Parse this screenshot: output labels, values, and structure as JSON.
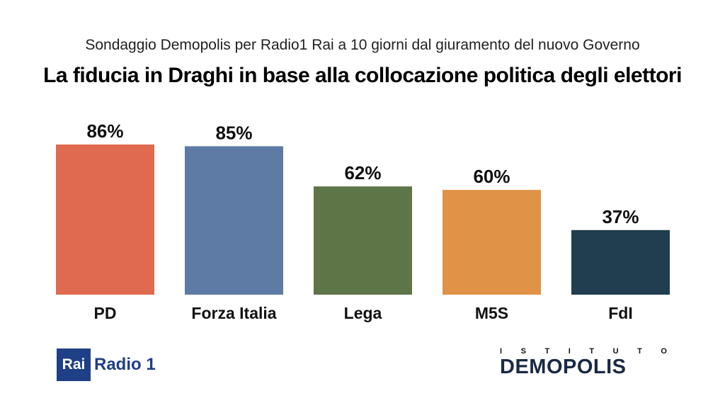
{
  "chart_data": {
    "type": "bar",
    "subtitle": "Sondaggio Demopolis per Radio1 Rai a 10 giorni dal giuramento del nuovo Governo",
    "title": "La fiducia in Draghi in base alla collocazione politica degli elettori",
    "categories": [
      "PD",
      "Forza Italia",
      "Lega",
      "M5S",
      "FdI"
    ],
    "values": [
      86,
      85,
      62,
      60,
      37
    ],
    "value_labels": [
      "86%",
      "85%",
      "62%",
      "60%",
      "37%"
    ],
    "colors": [
      "#e06a50",
      "#5d7ba5",
      "#5e7548",
      "#e09347",
      "#213d50"
    ],
    "ylim": [
      0,
      100
    ],
    "grid": false,
    "legend": "none"
  },
  "logos": {
    "rai_box": "Rai",
    "rai_name": "Radio 1",
    "demopolis_top": "ISTITUTO",
    "demopolis_name": "DEMOPOLIS"
  }
}
